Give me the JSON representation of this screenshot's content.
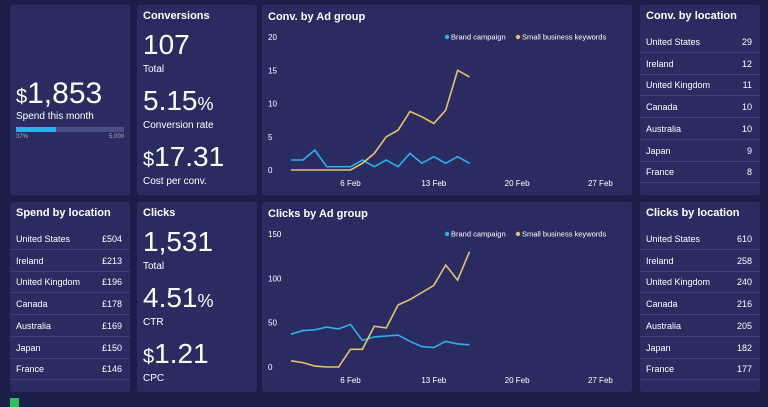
{
  "spend_panel": {
    "prefix": "$",
    "value": "1,853",
    "label": "Spend this month",
    "progress": {
      "value": 37,
      "label": "37%",
      "max_label": "5,000"
    }
  },
  "conversions_panel": {
    "title": "Conversions",
    "stats": [
      {
        "value": "107",
        "label": "Total"
      },
      {
        "value": "5.15",
        "suffix": "%",
        "label": "Conversion rate"
      },
      {
        "prefix": "$",
        "value": "17.31",
        "label": "Cost per conv."
      }
    ]
  },
  "clicks_panel": {
    "title": "Clicks",
    "stats": [
      {
        "value": "1,531",
        "label": "Total"
      },
      {
        "value": "4.51",
        "suffix": "%",
        "label": "CTR"
      },
      {
        "prefix": "$",
        "value": "1.21",
        "label": "CPC"
      }
    ]
  },
  "conv_by_location": {
    "title": "Conv. by location",
    "rows": [
      [
        "United States",
        "29"
      ],
      [
        "Ireland",
        "12"
      ],
      [
        "United Kingdom",
        "11"
      ],
      [
        "Canada",
        "10"
      ],
      [
        "Australia",
        "10"
      ],
      [
        "Japan",
        "9"
      ],
      [
        "France",
        "8"
      ]
    ]
  },
  "spend_by_location": {
    "title": "Spend by location",
    "rows": [
      [
        "United States",
        "£504"
      ],
      [
        "Ireland",
        "£213"
      ],
      [
        "United Kingdom",
        "£196"
      ],
      [
        "Canada",
        "£178"
      ],
      [
        "Australia",
        "£169"
      ],
      [
        "Japan",
        "£150"
      ],
      [
        "France",
        "£146"
      ]
    ]
  },
  "clicks_by_location": {
    "title": "Clicks by location",
    "rows": [
      [
        "United States",
        "610"
      ],
      [
        "Ireland",
        "258"
      ],
      [
        "United Kingdom",
        "240"
      ],
      [
        "Canada",
        "216"
      ],
      [
        "Australia",
        "205"
      ],
      [
        "Japan",
        "182"
      ],
      [
        "France",
        "177"
      ]
    ]
  },
  "chart_data": [
    {
      "type": "line",
      "title": "Conv. by Ad group",
      "categories": [
        null,
        null,
        null,
        null,
        null,
        "6 Feb",
        null,
        null,
        null,
        null,
        null,
        null,
        "13 Feb",
        null,
        null,
        null,
        null,
        null,
        null,
        "20 Feb",
        null,
        null,
        null,
        null,
        null,
        null,
        "27 Feb"
      ],
      "ylim": [
        0,
        20
      ],
      "yticks": [
        0,
        5,
        10,
        15,
        20
      ],
      "series": [
        {
          "name": "Brand campaign",
          "color": "#2bb0ec",
          "values": [
            1.5,
            1.5,
            3,
            0.5,
            0.5,
            0.5,
            1.5,
            0.5,
            1.5,
            0.5,
            2.5,
            1,
            2,
            1,
            2,
            1,
            null,
            null,
            null,
            null,
            null,
            null,
            null,
            null,
            null,
            null,
            null
          ]
        },
        {
          "name": "Small business keywords",
          "color": "#e8c26a",
          "values": [
            0,
            0,
            0,
            0,
            0,
            0,
            1,
            2.5,
            5,
            6,
            8.8,
            8,
            7,
            9,
            15,
            14,
            null,
            null,
            null,
            null,
            null,
            null,
            null,
            null,
            null,
            null,
            null
          ]
        }
      ]
    },
    {
      "type": "line",
      "title": "Clicks by Ad group",
      "categories": [
        null,
        null,
        null,
        null,
        null,
        "6 Feb",
        null,
        null,
        null,
        null,
        null,
        null,
        "13 Feb",
        null,
        null,
        null,
        null,
        null,
        null,
        "20 Feb",
        null,
        null,
        null,
        null,
        null,
        null,
        "27 Feb"
      ],
      "ylim": [
        0,
        150
      ],
      "yticks": [
        0,
        50,
        100,
        150
      ],
      "series": [
        {
          "name": "Brand campaign",
          "color": "#2bb0ec",
          "values": [
            37,
            41,
            42,
            45,
            43,
            48,
            30,
            34,
            35,
            36,
            29,
            23,
            22,
            29,
            26,
            25,
            null,
            null,
            null,
            null,
            null,
            null,
            null,
            null,
            null,
            null,
            null
          ]
        },
        {
          "name": "Small business keywords",
          "color": "#e8c26a",
          "values": [
            7,
            5,
            1,
            0,
            0,
            20,
            20,
            46,
            44,
            70,
            76,
            84,
            92,
            115,
            98,
            130,
            null,
            null,
            null,
            null,
            null,
            null,
            null,
            null,
            null,
            null,
            null
          ]
        }
      ]
    }
  ]
}
